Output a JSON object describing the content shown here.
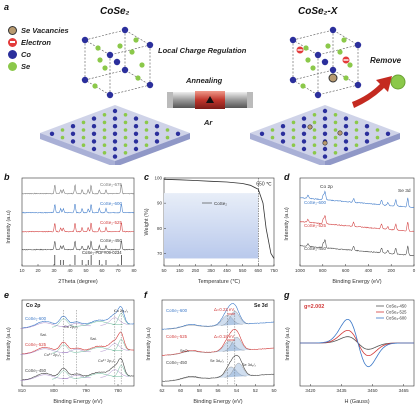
{
  "panel_a": {
    "letter": "a",
    "title_left": "CoSe₂",
    "title_right": "CoSe₂-X",
    "legend": [
      {
        "label": "Se Vacancies",
        "color": "#b89a70"
      },
      {
        "label": "Electron",
        "color": "#e33b3b"
      },
      {
        "label": "Co",
        "color": "#2b2f9c"
      },
      {
        "label": "Se",
        "color": "#8bc84a"
      }
    ],
    "process_label": "Local Charge Regulation",
    "annealing_label": "Annealing",
    "gas_label": "Ar",
    "remove_label": "Remove"
  },
  "panel_b": {
    "letter": "b",
    "xlabel": "2Theta (degree)",
    "ylabel": "Intensity (a.u)",
    "xticks": [
      "10",
      "20",
      "30",
      "40",
      "50",
      "60",
      "70",
      "80"
    ],
    "series": [
      {
        "name": "CoSe₂-675",
        "color": "#777777"
      },
      {
        "name": "CoSe₂-600",
        "color": "#3b78c8"
      },
      {
        "name": "CoSe₂-525",
        "color": "#d23b3b"
      },
      {
        "name": "CoSe₂-450",
        "color": "#444444"
      }
    ],
    "reference": "CoSe₂-PDF#09-0234"
  },
  "panel_c": {
    "letter": "c",
    "xlabel": "Temperature (℃)",
    "ylabel": "Weight (%)",
    "xticks": [
      "50",
      "150",
      "250",
      "350",
      "450",
      "550",
      "650",
      "750"
    ],
    "yticks": [
      "70",
      "80",
      "90",
      "100"
    ],
    "annotation": "650 ℃",
    "series_label": "CoSe₂"
  },
  "panel_d": {
    "letter": "d",
    "xlabel": "Binding Energy (eV)",
    "ylabel": "Intensity (a.u)",
    "xticks": [
      "1000",
      "800",
      "600",
      "400",
      "200",
      "0"
    ],
    "label_co": "Co 2p",
    "label_se": "Se 3d",
    "series": [
      {
        "name": "CoSe₂-600",
        "color": "#3b78c8"
      },
      {
        "name": "CoSe₂-525",
        "color": "#d23b3b"
      },
      {
        "name": "CoSe₂-450",
        "color": "#444444"
      }
    ]
  },
  "panel_e": {
    "letter": "e",
    "title": "Co 2p",
    "xlabel": "Binding Energy (eV)",
    "ylabel": "Intensity (a.u)",
    "xticks": [
      "810",
      "800",
      "790",
      "780"
    ],
    "series": [
      {
        "name": "CoSe₂-600",
        "color": "#3b78c8"
      },
      {
        "name": "CoSe₂-525",
        "color": "#d23b3b"
      },
      {
        "name": "CoSe₂-450",
        "color": "#444444"
      }
    ],
    "peak_labels": [
      "Sat.",
      "Co 2p₁/₂",
      "Co 2p₃/₂",
      "Sat.",
      "Co²⁺ 2p₁/₂",
      "Co²⁺ 2p₃/₂"
    ]
  },
  "panel_f": {
    "letter": "f",
    "title": "Se 3d",
    "xlabel": "Binding Energy (eV)",
    "ylabel": "Intensity (a.u)",
    "xticks": [
      "62",
      "60",
      "58",
      "56",
      "54",
      "52",
      "50"
    ],
    "series": [
      {
        "name": "CoSe₂-600",
        "color": "#3b78c8"
      },
      {
        "name": "CoSe₂-525",
        "color": "#d23b3b"
      },
      {
        "name": "CoSe₂-450",
        "color": "#444444"
      }
    ],
    "shift_labels": [
      "Δ=0.23 eV",
      "Δ=0.18 eV"
    ],
    "peak_labels": [
      "SeOₓ",
      "Se 3d₃/₂",
      "Se 3d₅/₂"
    ]
  },
  "panel_g": {
    "letter": "g",
    "g_value": "g=2.002",
    "xlabel": "H (Gauss)",
    "ylabel": "Intensity (a.u)",
    "xticks": [
      "3420",
      "3435",
      "3450",
      "3465"
    ],
    "series": [
      {
        "name": "CoSe₂-450",
        "color": "#555555"
      },
      {
        "name": "CoSe₂-525",
        "color": "#d23b3b"
      },
      {
        "name": "CoSe₂-600",
        "color": "#3b78c8"
      }
    ]
  },
  "chart_data": [
    {
      "type": "line",
      "panel": "b",
      "xlabel": "2Theta (degree)",
      "ylabel": "Intensity (a.u)",
      "xlim": [
        10,
        80
      ],
      "series": [
        {
          "name": "CoSe₂-675"
        },
        {
          "name": "CoSe₂-600"
        },
        {
          "name": "CoSe₂-525"
        },
        {
          "name": "CoSe₂-450"
        },
        {
          "name": "CoSe₂-PDF#09-0234"
        }
      ]
    },
    {
      "type": "line",
      "panel": "c",
      "xlabel": "Temperature (℃)",
      "ylabel": "Weight (%)",
      "xlim": [
        50,
        750
      ],
      "ylim": [
        65,
        100
      ],
      "series": [
        {
          "name": "CoSe₂",
          "x": [
            50,
            150,
            250,
            350,
            450,
            550,
            600,
            650,
            680,
            700,
            730,
            750
          ],
          "y": [
            99.5,
            99.3,
            99,
            98.7,
            98.4,
            97.8,
            97.1,
            95.5,
            90,
            80,
            70,
            68
          ]
        }
      ]
    },
    {
      "type": "line",
      "panel": "d",
      "xlabel": "Binding Energy (eV)",
      "ylabel": "Intensity (a.u)",
      "xlim": [
        1000,
        0
      ],
      "series": [
        {
          "name": "CoSe₂-600"
        },
        {
          "name": "CoSe₂-525"
        },
        {
          "name": "CoSe₂-450"
        }
      ]
    },
    {
      "type": "line",
      "panel": "e",
      "xlabel": "Binding Energy (eV)",
      "ylabel": "Intensity (a.u)",
      "xlim": [
        810,
        775
      ],
      "series": [
        {
          "name": "CoSe₂-600"
        },
        {
          "name": "CoSe₂-525"
        },
        {
          "name": "CoSe₂-450"
        }
      ]
    },
    {
      "type": "line",
      "panel": "f",
      "xlabel": "Binding Energy (eV)",
      "ylabel": "Intensity (a.u)",
      "xlim": [
        62,
        50
      ],
      "series": [
        {
          "name": "CoSe₂-600"
        },
        {
          "name": "CoSe₂-525"
        },
        {
          "name": "CoSe₂-450"
        }
      ]
    },
    {
      "type": "line",
      "panel": "g",
      "xlabel": "H (Gauss)",
      "ylabel": "Intensity (a.u)",
      "xlim": [
        3415,
        3470
      ],
      "series": [
        {
          "name": "CoSe₂-450"
        },
        {
          "name": "CoSe₂-525"
        },
        {
          "name": "CoSe₂-600"
        }
      ]
    }
  ]
}
